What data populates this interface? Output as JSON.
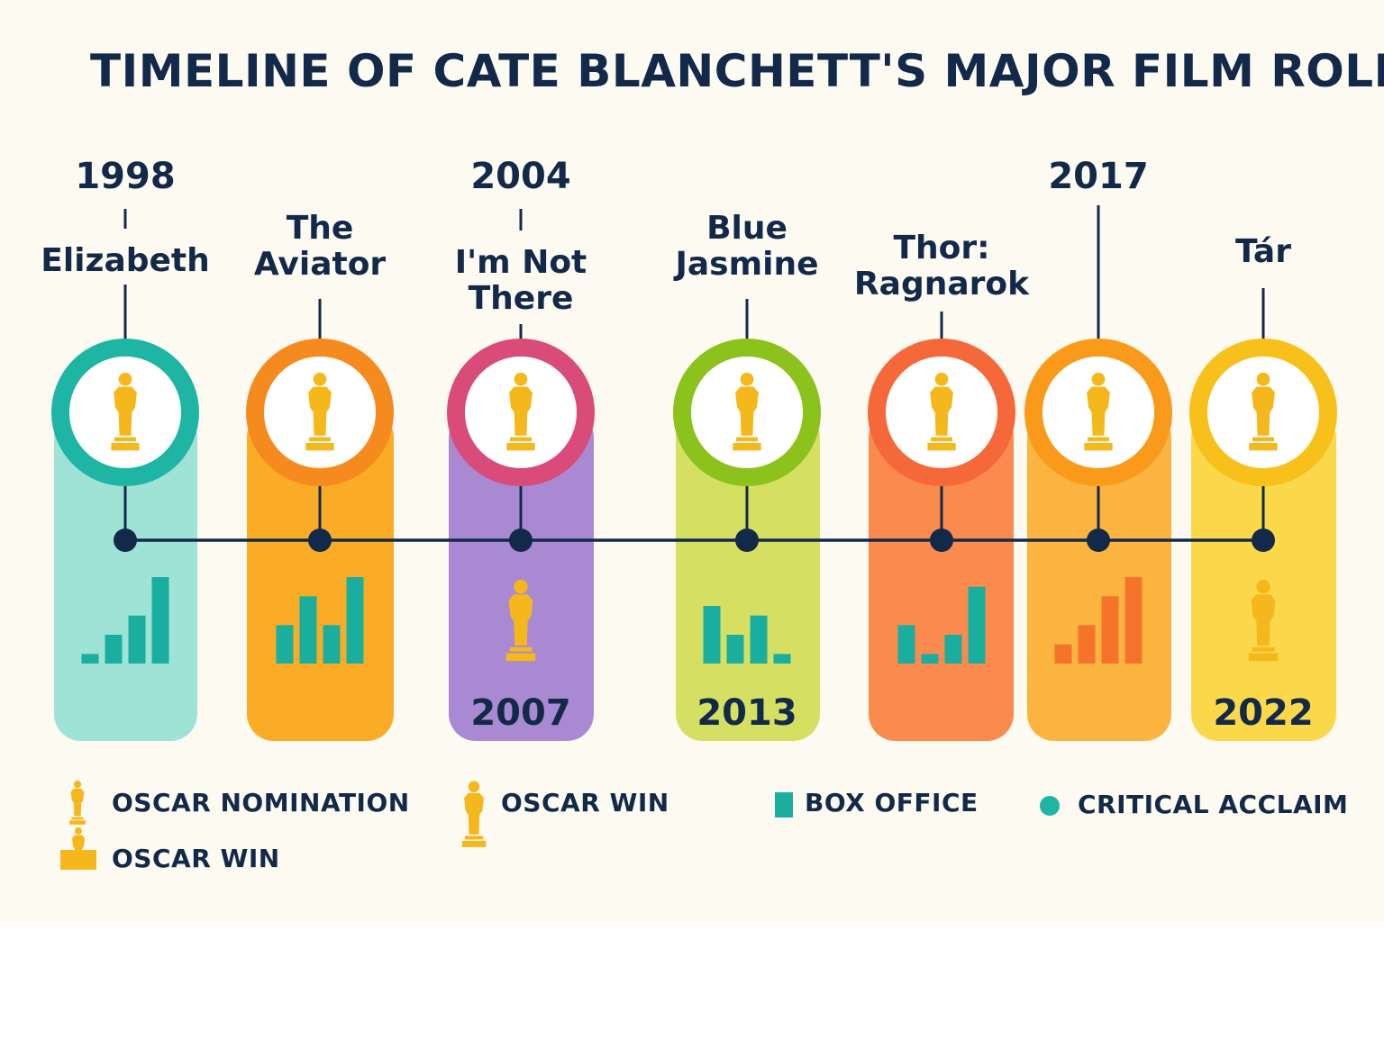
{
  "title": "TIMELINE OF CATE BLANCHETT'S MAJOR FILM ROLES",
  "colors": {
    "navy": "#13294a",
    "background": "#fdfaf1",
    "oscar_gold": "#f5b81c",
    "box_office_teal": "#1aae9f",
    "critical_teal": "#1fb5a5"
  },
  "films": [
    {
      "title": "Elizabeth",
      "year_label": "1998",
      "ring_color": "#1fb5a5",
      "panel_color": "#9fe3d6",
      "icon": "oscar-statuette-icon",
      "lower": {
        "kind": "bars",
        "color": "#1aae9f",
        "values": [
          1,
          3,
          5,
          9
        ]
      }
    },
    {
      "title": "The\nAviator",
      "year_label": "",
      "ring_color": "#f58a1f",
      "panel_color": "#fbac26",
      "icon": "oscar-statuette-icon",
      "lower": {
        "kind": "bars",
        "color": "#1aae9f",
        "values": [
          4,
          7,
          4,
          9
        ]
      }
    },
    {
      "title": "I'm Not\nThere",
      "year_label": "2004",
      "ring_color": "#d94b78",
      "panel_color": "#a98ad2",
      "icon": "oscar-statuette-icon",
      "lower": {
        "kind": "oscar"
      },
      "bottom_year": "2007"
    },
    {
      "title": "Blue\nJasmine",
      "year_label": "",
      "ring_color": "#8cc21c",
      "panel_color": "#d5e063",
      "icon": "oscar-statuette-icon",
      "lower": {
        "kind": "bars",
        "color": "#1aae9f",
        "values": [
          6,
          3,
          5,
          1
        ]
      },
      "bottom_year": "2013"
    },
    {
      "title": "Thor:\nRagnarok",
      "year_label": "",
      "ring_color": "#f4683a",
      "panel_color": "#fb8a4f",
      "icon": "oscar-statuette-icon",
      "lower": {
        "kind": "bars",
        "color": "#1aae9f",
        "values": [
          4,
          1,
          3,
          8
        ]
      }
    },
    {
      "title": "",
      "year_label": "2017",
      "ring_color": "#fa9a1a",
      "panel_color": "#fbb43f",
      "icon": "oscar-statuette-icon",
      "lower": {
        "kind": "bars",
        "color": "#f5732a",
        "values": [
          2,
          4,
          7,
          9
        ]
      }
    },
    {
      "title": "Tár",
      "year_label": "",
      "ring_color": "#f8c01a",
      "panel_color": "#fbd84a",
      "icon": "oscar-statuette-icon",
      "lower": {
        "kind": "oscar"
      },
      "bottom_year": "2022"
    }
  ],
  "legend": {
    "nomination": "OSCAR NOMINATION",
    "win_left": "OSCAR WIN",
    "win_mid": "OSCAR WIN",
    "box_office": "BOX OFFICE",
    "critical": "CRITICAL ACCLAIM"
  }
}
